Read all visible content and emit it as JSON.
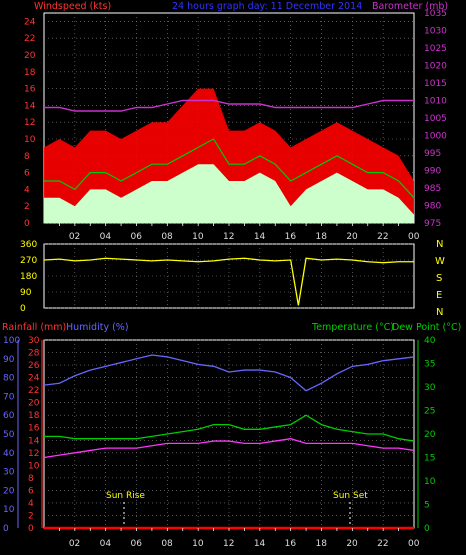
{
  "header": {
    "left_title": "Windspeed (kts)",
    "center_title": "24 hours graph day: 11 December 2014",
    "right_title": "Barometer (mb)"
  },
  "bottom_header": {
    "rain_title": "Rainfall (mm)",
    "humidity_title": "Humidity (%)",
    "temp_title": "Temperature (°C)",
    "dew_title": "Dew Point (°C)"
  },
  "colors": {
    "wind": "#ff0000",
    "gust_fill": "#ccffcc",
    "avg_wind": "#00cc00",
    "baro": "#cc33cc",
    "dir": "#ffff00",
    "humidity": "#6666ff",
    "temp": "#00cc00",
    "dew": "#ff33ff",
    "rain": "#ff0000",
    "hum_axis": "#6666ff",
    "temp_axis": "#00cc00",
    "compass": "#ffff00"
  },
  "x_axis": {
    "labels": [
      "02",
      "04",
      "06",
      "08",
      "10",
      "12",
      "14",
      "16",
      "18",
      "20",
      "22",
      "00"
    ]
  },
  "compass_labels": [
    "N",
    "W",
    "S",
    "E",
    "N"
  ],
  "sun": {
    "rise_label": "Sun Rise",
    "set_label": "Sun Set"
  },
  "chart_data": [
    {
      "type": "area",
      "title": "24 hours graph day: 11 December 2014",
      "ylabel": "Windspeed (kts)",
      "y2label": "Barometer (mb)",
      "ylim": [
        0,
        25
      ],
      "y2lim": [
        975,
        1035
      ],
      "y_ticks": [
        "0",
        "2",
        "4",
        "6",
        "8",
        "10",
        "12",
        "14",
        "16",
        "18",
        "20",
        "22",
        "24"
      ],
      "y2_ticks": [
        "975",
        "980",
        "985",
        "990",
        "995",
        "1000",
        "1005",
        "1010",
        "1015",
        "1020",
        "1025",
        "1030",
        "1035"
      ],
      "x_hours": [
        0,
        1,
        2,
        3,
        4,
        5,
        6,
        7,
        8,
        9,
        10,
        11,
        12,
        13,
        14,
        15,
        16,
        17,
        18,
        19,
        20,
        21,
        22,
        23,
        24
      ],
      "series": [
        {
          "name": "Gust",
          "values": [
            9,
            10,
            9,
            11,
            11,
            10,
            11,
            12,
            12,
            14,
            16,
            16,
            11,
            11,
            12,
            11,
            9,
            10,
            11,
            12,
            11,
            10,
            9,
            8,
            5
          ]
        },
        {
          "name": "Average",
          "values": [
            5,
            5,
            4,
            6,
            6,
            5,
            6,
            7,
            7,
            8,
            9,
            10,
            7,
            7,
            8,
            7,
            5,
            6,
            7,
            8,
            7,
            6,
            6,
            5,
            3
          ]
        },
        {
          "name": "Wind speed",
          "values": [
            3,
            3,
            2,
            4,
            4,
            3,
            4,
            5,
            5,
            6,
            7,
            7,
            5,
            5,
            6,
            5,
            2,
            4,
            5,
            6,
            5,
            4,
            4,
            3,
            1
          ]
        },
        {
          "name": "Barometer",
          "values": [
            1008,
            1008,
            1007,
            1007,
            1007,
            1007,
            1008,
            1008,
            1009,
            1010,
            1010,
            1010,
            1009,
            1009,
            1009,
            1008,
            1008,
            1008,
            1008,
            1008,
            1008,
            1009,
            1010,
            1010,
            1010
          ]
        }
      ]
    },
    {
      "type": "line",
      "ylim": [
        0,
        360
      ],
      "y_ticks": [
        "0",
        "90",
        "180",
        "270",
        "360"
      ],
      "x_hours": [
        0,
        1,
        2,
        3,
        4,
        5,
        6,
        7,
        8,
        9,
        10,
        11,
        12,
        13,
        14,
        15,
        16,
        16.5,
        17,
        18,
        19,
        20,
        21,
        22,
        23,
        24
      ],
      "series": [
        {
          "name": "Wind direction",
          "values": [
            270,
            275,
            265,
            270,
            280,
            275,
            270,
            265,
            270,
            265,
            260,
            265,
            275,
            280,
            270,
            265,
            270,
            15,
            280,
            270,
            275,
            270,
            260,
            255,
            260,
            260
          ]
        }
      ]
    },
    {
      "type": "line",
      "ylim_rain": [
        0,
        30
      ],
      "rain_ticks": [
        "0",
        "2",
        "4",
        "6",
        "8",
        "10",
        "12",
        "14",
        "16",
        "18",
        "20",
        "22",
        "24",
        "26",
        "28",
        "30"
      ],
      "ylim_hum": [
        0,
        100
      ],
      "hum_ticks": [
        "0",
        "10",
        "20",
        "30",
        "40",
        "50",
        "60",
        "70",
        "80",
        "90",
        "100"
      ],
      "ylim_temp": [
        0,
        40
      ],
      "temp_ticks": [
        "0",
        "5",
        "10",
        "15",
        "20",
        "25",
        "30",
        "35",
        "40"
      ],
      "x_hours": [
        0,
        1,
        2,
        3,
        4,
        5,
        6,
        7,
        8,
        9,
        10,
        11,
        12,
        13,
        14,
        15,
        16,
        17,
        18,
        19,
        20,
        21,
        22,
        23,
        24
      ],
      "series": [
        {
          "name": "Humidity",
          "values": [
            76,
            77,
            81,
            84,
            86,
            88,
            90,
            92,
            91,
            89,
            87,
            86,
            83,
            84,
            84,
            83,
            80,
            73,
            77,
            82,
            86,
            87,
            89,
            90,
            91
          ]
        },
        {
          "name": "Temperature",
          "values": [
            19.5,
            19.5,
            19,
            19,
            19,
            19,
            19,
            19.5,
            20,
            20.5,
            21,
            22,
            22,
            21,
            21,
            21.5,
            22,
            24,
            22,
            21,
            20.5,
            20,
            20,
            19,
            18.5
          ]
        },
        {
          "name": "Dew Point",
          "values": [
            15,
            15.5,
            16,
            16.5,
            17,
            17,
            17,
            17.5,
            18,
            18,
            18,
            18.5,
            18.5,
            18,
            18,
            18.5,
            19,
            18,
            18,
            18,
            18,
            17.5,
            17,
            17,
            16.5
          ]
        },
        {
          "name": "Rainfall",
          "values": [
            0,
            0,
            0,
            0,
            0,
            0,
            0,
            0,
            0,
            0,
            0,
            0,
            0,
            0,
            0,
            0,
            0,
            0,
            0,
            0,
            0,
            0,
            0,
            0,
            0
          ]
        }
      ]
    }
  ]
}
